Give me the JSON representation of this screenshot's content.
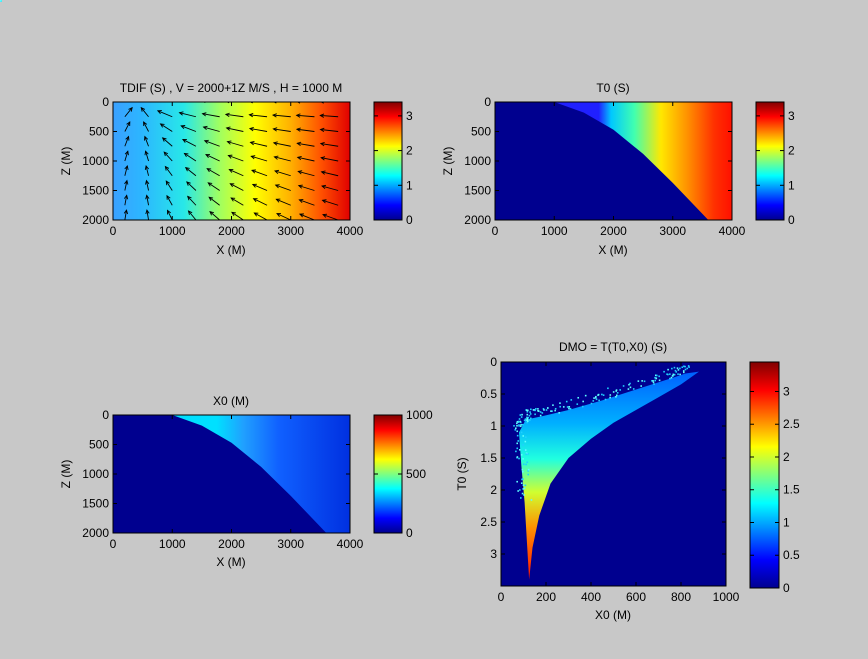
{
  "background": "#c8c8c8",
  "chart_data": [
    {
      "type": "heatmap",
      "title": "TDIF (S) , V = 2000+1Z M/S , H = 1000 M",
      "xlabel": "X (M)",
      "ylabel": "Z (M)",
      "xlim": [
        0,
        4000
      ],
      "ylim": [
        2000,
        0
      ],
      "xticks": [
        "0",
        "1000",
        "2000",
        "3000",
        "4000"
      ],
      "yticks": [
        "0",
        "500",
        "1000",
        "1500",
        "2000"
      ],
      "colorbar": {
        "range": [
          0,
          3.4
        ],
        "ticks": [
          "0",
          "1",
          "2",
          "3"
        ]
      },
      "field": "travel-time difference increasing with X from about 0.9 s at X=0 to 3.3 s at X=4000, minimum near X=400 Z=300",
      "overlay": "vector arrows (quiver)"
    },
    {
      "type": "heatmap",
      "title": "T0 (S)",
      "xlabel": "X (M)",
      "ylabel": "Z (M)",
      "xlim": [
        0,
        4000
      ],
      "ylim": [
        2000,
        0
      ],
      "xticks": [
        "0",
        "1000",
        "2000",
        "3000",
        "4000"
      ],
      "yticks": [
        "0",
        "500",
        "1000",
        "1500",
        "2000"
      ],
      "colorbar": {
        "range": [
          0,
          3.4
        ],
        "ticks": [
          "0",
          "1",
          "2",
          "3"
        ]
      },
      "valid_region_boundary": {
        "x": [
          1000,
          1500,
          2000,
          2500,
          3000,
          3600
        ],
        "z": [
          0,
          180,
          470,
          880,
          1370,
          2000
        ]
      }
    },
    {
      "type": "heatmap",
      "title": "X0 (M)",
      "xlabel": "X (M)",
      "ylabel": "Z (M)",
      "xlim": [
        0,
        4000
      ],
      "ylim": [
        2000,
        0
      ],
      "xticks": [
        "0",
        "1000",
        "2000",
        "3000",
        "4000"
      ],
      "yticks": [
        "0",
        "500",
        "1000",
        "1500",
        "2000"
      ],
      "colorbar": {
        "range": [
          0,
          1000
        ],
        "ticks": [
          "0",
          "500",
          "1000"
        ]
      },
      "valid_region_boundary": {
        "x": [
          1000,
          1500,
          2000,
          2500,
          3000,
          3600
        ],
        "z": [
          0,
          180,
          470,
          880,
          1370,
          2000
        ]
      }
    },
    {
      "type": "scatter",
      "title": "DMO = T(T0,X0) (S)",
      "xlabel": "X0 (M)",
      "ylabel": "T0 (S)",
      "xlim": [
        0,
        1000
      ],
      "ylim": [
        3.5,
        0
      ],
      "xticks": [
        "0",
        "200",
        "400",
        "600",
        "800",
        "1000"
      ],
      "yticks": [
        "0",
        "0.5",
        "1",
        "1.5",
        "2",
        "2.5",
        "3"
      ],
      "colorbar": {
        "range": [
          0,
          3.45
        ],
        "ticks": [
          "0",
          "0.5",
          "1",
          "1.5",
          "2",
          "2.5",
          "3"
        ]
      },
      "inner_boundary": {
        "x0": [
          125,
          115,
          105,
          90,
          80,
          110,
          180,
          300,
          450,
          600,
          760,
          820
        ],
        "t0": [
          3.4,
          2.8,
          2.2,
          1.6,
          1.1,
          0.9,
          0.85,
          0.75,
          0.6,
          0.43,
          0.25,
          0.18
        ]
      },
      "outer_boundary": {
        "x0": [
          125,
          140,
          170,
          220,
          300,
          400,
          500,
          600,
          700,
          800,
          880
        ],
        "t0": [
          3.4,
          2.9,
          2.4,
          1.9,
          1.5,
          1.2,
          0.95,
          0.75,
          0.55,
          0.35,
          0.15
        ]
      }
    }
  ]
}
